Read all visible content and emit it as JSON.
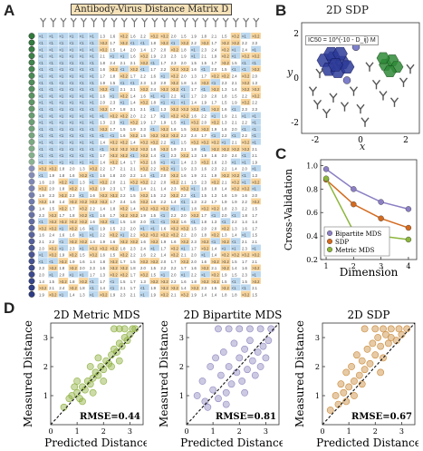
{
  "panel_labels": [
    "A",
    "B",
    "C",
    "D"
  ],
  "matrix": {
    "title": "Antibody-Virus Distance Matrix D",
    "cell_value_low": "<1",
    "cell_value_high": ">3.2",
    "colors": {
      "blue": "#bcd8ef",
      "orange": "#f8d49a",
      "virus_green": "#2f7a3c",
      "virus_purple": "#2e3c86"
    }
  },
  "sdp_map": {
    "title": "2D SDP",
    "formula": "IC50 = 10^(-10 - D_ij) M",
    "xlabel": "x",
    "ylabel": "y",
    "x_ticks": [
      "-2",
      "0",
      "2"
    ],
    "y_ticks": [
      "2",
      "0",
      "-2"
    ],
    "colors": {
      "cluster_a": "#2d3b99",
      "cluster_b": "#2e8a37"
    }
  },
  "chart_data": [
    {
      "type": "line",
      "title": "",
      "xlabel": "Dimension",
      "ylabel": "Cross-Validation",
      "x": [
        1,
        2,
        3,
        4
      ],
      "xlim": [
        0.8,
        4.3
      ],
      "ylim": [
        0.2,
        1.05
      ],
      "x_ticks": [
        1,
        2,
        3,
        4
      ],
      "y_ticks": [
        0.2,
        0.4,
        0.6,
        0.8,
        1.0
      ],
      "y_tick_labels": [
        "0.2",
        "0.4",
        "0.6",
        "0.8",
        "1.0"
      ],
      "legend_position": "bottom-left",
      "series": [
        {
          "name": "Bipartite MDS",
          "values": [
            0.97,
            0.8,
            0.69,
            0.63
          ],
          "color": "#8c7fc4"
        },
        {
          "name": "SDP",
          "values": [
            0.88,
            0.67,
            0.55,
            0.47
          ],
          "color": "#d46a1e"
        },
        {
          "name": "Metric MDS",
          "values": [
            0.89,
            0.44,
            0.4,
            0.37
          ],
          "color": "#8cb63c"
        }
      ]
    },
    {
      "type": "scatter",
      "title": "2D Metric MDS",
      "xlabel": "Predicted Distance",
      "ylabel": "Measured Distance",
      "annotation": "RMSE=0.44",
      "xlim": [
        0,
        3.5
      ],
      "ylim": [
        0,
        3.5
      ],
      "x_ticks": [
        0,
        1,
        2,
        3
      ],
      "y_ticks": [
        1,
        2,
        3
      ],
      "color": "#8db03f",
      "points": [
        [
          0.5,
          0.6
        ],
        [
          0.7,
          0.9
        ],
        [
          0.8,
          1.0
        ],
        [
          1.0,
          1.1
        ],
        [
          1.1,
          0.9
        ],
        [
          1.2,
          1.3
        ],
        [
          1.3,
          1.2
        ],
        [
          1.4,
          1.5
        ],
        [
          1.5,
          1.4
        ],
        [
          1.6,
          1.6
        ],
        [
          1.7,
          1.8
        ],
        [
          1.8,
          1.7
        ],
        [
          1.9,
          2.0
        ],
        [
          2.0,
          1.9
        ],
        [
          2.1,
          2.2
        ],
        [
          2.2,
          2.1
        ],
        [
          2.3,
          2.4
        ],
        [
          2.4,
          2.6
        ],
        [
          2.5,
          2.5
        ],
        [
          2.6,
          2.8
        ],
        [
          2.7,
          2.7
        ],
        [
          2.8,
          3.0
        ],
        [
          2.9,
          2.9
        ],
        [
          3.0,
          3.1
        ],
        [
          3.1,
          3.3
        ],
        [
          3.2,
          3.3
        ],
        [
          2.4,
          3.3
        ],
        [
          2.6,
          3.3
        ],
        [
          2.8,
          3.3
        ],
        [
          1.0,
          1.5
        ],
        [
          1.2,
          0.8
        ],
        [
          1.5,
          2.0
        ],
        [
          1.8,
          2.3
        ],
        [
          2.0,
          1.5
        ],
        [
          2.3,
          2.0
        ],
        [
          2.6,
          2.2
        ],
        [
          0.9,
          1.3
        ],
        [
          1.6,
          1.1
        ]
      ]
    },
    {
      "type": "scatter",
      "title": "2D Bipartite MDS",
      "xlabel": "Predicted Distance",
      "ylabel": "Measured Distance",
      "annotation": "RMSE=0.81",
      "xlim": [
        0,
        3.5
      ],
      "ylim": [
        0,
        3.5
      ],
      "x_ticks": [
        0,
        1,
        2,
        3
      ],
      "y_ticks": [
        1,
        2,
        3
      ],
      "color": "#8f88bf",
      "points": [
        [
          0.4,
          1.0
        ],
        [
          0.6,
          1.5
        ],
        [
          0.7,
          0.8
        ],
        [
          0.9,
          2.0
        ],
        [
          1.0,
          1.2
        ],
        [
          1.1,
          2.3
        ],
        [
          1.2,
          0.9
        ],
        [
          1.3,
          1.7
        ],
        [
          1.4,
          2.5
        ],
        [
          1.5,
          1.1
        ],
        [
          1.6,
          2.0
        ],
        [
          1.7,
          1.4
        ],
        [
          1.8,
          2.8
        ],
        [
          1.9,
          1.8
        ],
        [
          2.0,
          2.3
        ],
        [
          2.1,
          1.5
        ],
        [
          2.2,
          2.6
        ],
        [
          2.3,
          1.9
        ],
        [
          2.4,
          2.9
        ],
        [
          2.5,
          2.2
        ],
        [
          2.6,
          1.7
        ],
        [
          2.7,
          2.5
        ],
        [
          2.8,
          2.0
        ],
        [
          2.9,
          2.7
        ],
        [
          3.0,
          2.3
        ],
        [
          3.1,
          2.9
        ],
        [
          1.2,
          3.3
        ],
        [
          1.6,
          3.3
        ],
        [
          2.0,
          3.3
        ],
        [
          2.4,
          3.3
        ],
        [
          2.8,
          3.3
        ],
        [
          3.2,
          3.3
        ],
        [
          0.8,
          0.6
        ],
        [
          1.5,
          0.7
        ],
        [
          2.2,
          1.1
        ]
      ]
    },
    {
      "type": "scatter",
      "title": "2D SDP",
      "xlabel": "Predicted Distance",
      "ylabel": "Measured Distance",
      "annotation": "RMSE=0.67",
      "xlim": [
        0,
        3.5
      ],
      "ylim": [
        0,
        3.5
      ],
      "x_ticks": [
        0,
        1,
        2,
        3
      ],
      "y_ticks": [
        1,
        2,
        3
      ],
      "color": "#c98a3a",
      "points": [
        [
          0.3,
          0.5
        ],
        [
          0.5,
          1.0
        ],
        [
          0.6,
          0.7
        ],
        [
          0.7,
          1.4
        ],
        [
          0.8,
          1.1
        ],
        [
          0.9,
          1.8
        ],
        [
          1.0,
          1.3
        ],
        [
          1.1,
          2.0
        ],
        [
          1.2,
          1.5
        ],
        [
          1.3,
          2.4
        ],
        [
          1.4,
          1.7
        ],
        [
          1.5,
          2.2
        ],
        [
          1.6,
          1.9
        ],
        [
          1.7,
          2.6
        ],
        [
          1.8,
          2.1
        ],
        [
          1.9,
          2.8
        ],
        [
          2.0,
          2.4
        ],
        [
          2.1,
          3.0
        ],
        [
          2.2,
          2.7
        ],
        [
          2.3,
          2.3
        ],
        [
          2.4,
          3.1
        ],
        [
          2.5,
          2.8
        ],
        [
          2.6,
          3.0
        ],
        [
          2.8,
          2.9
        ],
        [
          3.0,
          3.1
        ],
        [
          1.6,
          3.3
        ],
        [
          2.0,
          3.3
        ],
        [
          2.3,
          3.3
        ],
        [
          2.6,
          3.3
        ],
        [
          2.9,
          3.3
        ],
        [
          3.2,
          3.3
        ],
        [
          0.9,
          0.8
        ],
        [
          1.2,
          1.0
        ],
        [
          1.5,
          1.4
        ],
        [
          2.2,
          1.8
        ]
      ]
    }
  ]
}
